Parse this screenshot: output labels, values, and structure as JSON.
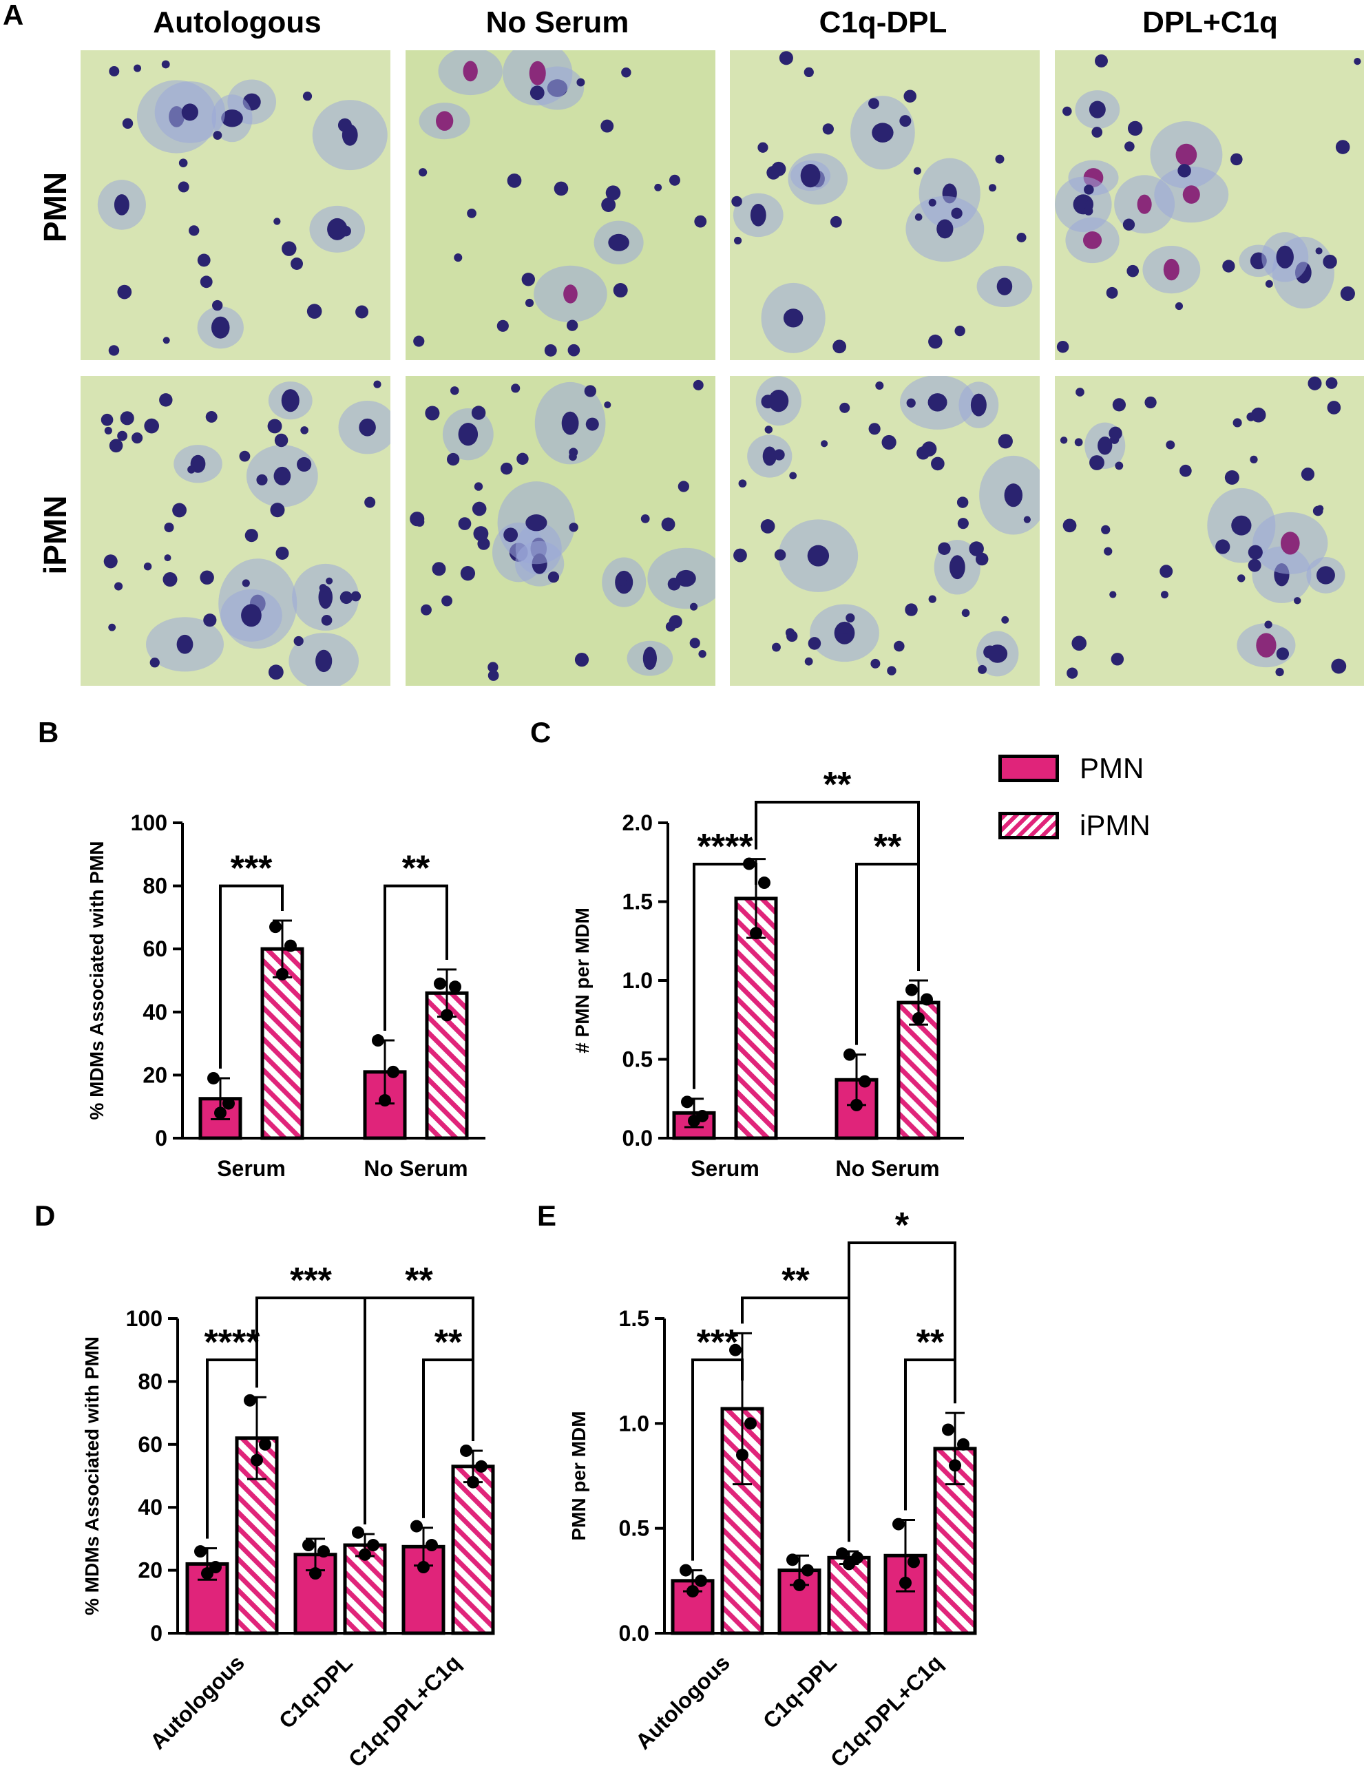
{
  "colors": {
    "pmn": "#e0247a",
    "bar_border": "#000000",
    "micro_background": "#d7e4b3",
    "cell": "#9aa8d9",
    "nucleus": "#2a2370"
  },
  "panel_a": {
    "letter": "A",
    "columns": [
      "Autologous",
      "No Serum",
      "C1q-DPL",
      "DPL+C1q"
    ],
    "rows": [
      "PMN",
      "iPMN"
    ]
  },
  "legend": {
    "items": [
      {
        "label": "PMN",
        "fill": "solid"
      },
      {
        "label": "iPMN",
        "fill": "hatched"
      }
    ]
  },
  "chart_data": [
    {
      "panel": "B",
      "type": "bar",
      "categories": [
        "Serum",
        "No Serum"
      ],
      "series": [
        {
          "name": "PMN",
          "values": [
            12.5,
            21
          ],
          "error": [
            6.5,
            10
          ],
          "points": [
            [
              19,
              8,
              11
            ],
            [
              31,
              12,
              21
            ]
          ]
        },
        {
          "name": "iPMN",
          "values": [
            60,
            46
          ],
          "error": [
            9,
            7.5
          ],
          "points": [
            [
              67,
              52,
              61
            ],
            [
              49,
              39,
              48
            ]
          ]
        }
      ],
      "ylabel": "% MDMs Associated with PMN",
      "ylim": [
        0,
        100
      ],
      "yticks": [
        "0",
        "20",
        "40",
        "60",
        "80",
        "100"
      ],
      "significance": [
        {
          "label": "***",
          "from": [
            0,
            0
          ],
          "to": [
            0,
            1
          ],
          "level": 1
        },
        {
          "label": "**",
          "from": [
            1,
            0
          ],
          "to": [
            1,
            1
          ],
          "level": 1
        }
      ]
    },
    {
      "panel": "C",
      "type": "bar",
      "categories": [
        "Serum",
        "No Serum"
      ],
      "series": [
        {
          "name": "PMN",
          "values": [
            0.16,
            0.37
          ],
          "error": [
            0.09,
            0.16
          ],
          "points": [
            [
              0.23,
              0.11,
              0.14
            ],
            [
              0.53,
              0.21,
              0.36
            ]
          ]
        },
        {
          "name": "iPMN",
          "values": [
            1.52,
            0.86
          ],
          "error": [
            0.25,
            0.14
          ],
          "points": [
            [
              1.74,
              1.3,
              1.62
            ],
            [
              0.94,
              0.76,
              0.88
            ]
          ]
        }
      ],
      "ylabel": "# PMN per MDM",
      "ylim": [
        0,
        2
      ],
      "yticks": [
        "0.0",
        "0.5",
        "1.0",
        "1.5",
        "2.0"
      ],
      "significance": [
        {
          "label": "****",
          "from": [
            0,
            0
          ],
          "to": [
            0,
            1
          ],
          "level": 1
        },
        {
          "label": "**",
          "from": [
            1,
            0
          ],
          "to": [
            1,
            1
          ],
          "level": 1
        },
        {
          "label": "**",
          "from": [
            0,
            1
          ],
          "to": [
            1,
            1
          ],
          "level": 2
        }
      ]
    },
    {
      "panel": "D",
      "type": "bar",
      "categories": [
        "Autologous",
        "C1q-DPL",
        "C1q-DPL+C1q"
      ],
      "series": [
        {
          "name": "PMN",
          "values": [
            22,
            25,
            27.5
          ],
          "error": [
            5,
            5,
            6
          ],
          "points": [
            [
              26,
              19,
              21
            ],
            [
              28,
              19,
              26
            ],
            [
              34,
              21,
              28
            ]
          ]
        },
        {
          "name": "iPMN",
          "values": [
            62,
            28,
            53
          ],
          "error": [
            13,
            3.5,
            5
          ],
          "points": [
            [
              74,
              55,
              60
            ],
            [
              32,
              25,
              28
            ],
            [
              58,
              48,
              53
            ]
          ]
        }
      ],
      "ylabel": "% MDMs Associated with PMN",
      "ylim": [
        0,
        100
      ],
      "yticks": [
        "0",
        "20",
        "40",
        "60",
        "80",
        "100"
      ],
      "significance": [
        {
          "label": "****",
          "from": [
            0,
            0
          ],
          "to": [
            0,
            1
          ],
          "level": 1
        },
        {
          "label": "**",
          "from": [
            2,
            0
          ],
          "to": [
            2,
            1
          ],
          "level": 1
        },
        {
          "label": "***",
          "from": [
            0,
            1
          ],
          "to": [
            1,
            1
          ],
          "level": 2
        },
        {
          "label": "**",
          "from": [
            1,
            1
          ],
          "to": [
            2,
            1
          ],
          "level": 2
        }
      ]
    },
    {
      "panel": "E",
      "type": "bar",
      "categories": [
        "Autologous",
        "C1q-DPL",
        "C1q-DPL+C1q"
      ],
      "series": [
        {
          "name": "PMN",
          "values": [
            0.25,
            0.3,
            0.37
          ],
          "error": [
            0.05,
            0.07,
            0.17
          ],
          "points": [
            [
              0.3,
              0.2,
              0.25
            ],
            [
              0.35,
              0.23,
              0.3
            ],
            [
              0.52,
              0.24,
              0.34
            ]
          ]
        },
        {
          "name": "iPMN",
          "values": [
            1.07,
            0.36,
            0.88
          ],
          "error": [
            0.36,
            0.03,
            0.17
          ],
          "points": [
            [
              1.35,
              0.85,
              1.0
            ],
            [
              0.38,
              0.33,
              0.36
            ],
            [
              0.97,
              0.8,
              0.9
            ]
          ]
        }
      ],
      "ylabel": "PMN per MDM",
      "ylim": [
        0,
        1.5
      ],
      "yticks": [
        "0.0",
        "0.5",
        "1.0",
        "1.5"
      ],
      "significance": [
        {
          "label": "***",
          "from": [
            0,
            0
          ],
          "to": [
            0,
            1
          ],
          "level": 1
        },
        {
          "label": "**",
          "from": [
            2,
            0
          ],
          "to": [
            2,
            1
          ],
          "level": 1
        },
        {
          "label": "**",
          "from": [
            0,
            1
          ],
          "to": [
            1,
            1
          ],
          "level": 2
        },
        {
          "label": "*",
          "from": [
            1,
            1
          ],
          "to": [
            2,
            1
          ],
          "level": 3
        }
      ]
    }
  ]
}
